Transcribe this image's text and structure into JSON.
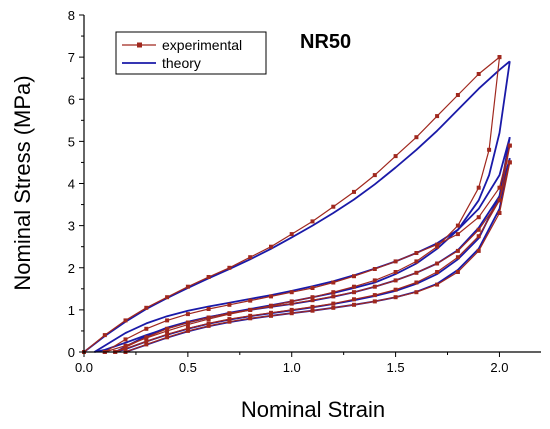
{
  "chart_data": {
    "type": "line",
    "title": "NR50",
    "xlabel": "Nominal Strain",
    "ylabel": "Nominal Stress (MPa)",
    "xlim": [
      0,
      2.2
    ],
    "ylim": [
      0,
      8
    ],
    "xticks": [
      0.0,
      0.5,
      1.0,
      1.5,
      2.0
    ],
    "xtick_labels": [
      "0.0",
      "0.5",
      "1.0",
      "1.5",
      "2.0"
    ],
    "yticks": [
      0,
      1,
      2,
      3,
      4,
      5,
      6,
      7,
      8
    ],
    "ytick_labels": [
      "0",
      "1",
      "2",
      "3",
      "4",
      "5",
      "6",
      "7",
      "8"
    ],
    "grid": false,
    "legend_position": "top-left",
    "legend": [
      {
        "label": "experimental",
        "color": "#a0281e",
        "marker": "square"
      },
      {
        "label": "theory",
        "color": "#1a1aa8",
        "marker": "none"
      }
    ],
    "series": [
      {
        "name": "experimental",
        "color": "#a0281e",
        "marker": "square",
        "curves": [
          {
            "x": [
              0,
              0.1,
              0.2,
              0.3,
              0.4,
              0.5,
              0.6,
              0.7,
              0.8,
              0.9,
              1.0,
              1.1,
              1.2,
              1.3,
              1.4,
              1.5,
              1.6,
              1.7,
              1.8,
              1.9,
              2.0
            ],
            "y": [
              0,
              0.4,
              0.75,
              1.05,
              1.3,
              1.55,
              1.78,
              2.0,
              2.25,
              2.5,
              2.8,
              3.1,
              3.45,
              3.8,
              4.2,
              4.65,
              5.1,
              5.6,
              6.1,
              6.6,
              7.0
            ]
          },
          {
            "x": [
              2.0,
              1.95,
              1.9,
              1.8,
              1.7,
              1.6,
              1.5,
              1.4,
              1.3,
              1.2,
              1.1,
              1.0,
              0.9,
              0.8,
              0.7,
              0.6,
              0.5,
              0.4,
              0.3,
              0.2,
              0.1
            ],
            "y": [
              7.0,
              4.8,
              3.9,
              3.0,
              2.5,
              2.15,
              1.9,
              1.7,
              1.55,
              1.42,
              1.3,
              1.2,
              1.1,
              1.0,
              0.9,
              0.78,
              0.65,
              0.5,
              0.33,
              0.15,
              0
            ]
          },
          {
            "x": [
              0.1,
              0.2,
              0.3,
              0.4,
              0.5,
              0.6,
              0.7,
              0.8,
              0.9,
              1.0,
              1.1,
              1.2,
              1.3,
              1.4,
              1.5,
              1.6,
              1.7,
              1.8,
              1.9,
              2.0,
              2.05
            ],
            "y": [
              0,
              0.3,
              0.55,
              0.75,
              0.9,
              1.02,
              1.12,
              1.22,
              1.32,
              1.42,
              1.52,
              1.65,
              1.8,
              1.97,
              2.15,
              2.35,
              2.55,
              2.8,
              3.2,
              3.9,
              4.9
            ]
          },
          {
            "x": [
              2.05,
              2.0,
              1.9,
              1.8,
              1.7,
              1.6,
              1.5,
              1.4,
              1.3,
              1.2,
              1.1,
              1.0,
              0.9,
              0.8,
              0.7,
              0.6,
              0.5,
              0.4,
              0.3,
              0.2,
              0.15
            ],
            "y": [
              4.9,
              3.6,
              2.75,
              2.25,
              1.9,
              1.65,
              1.48,
              1.35,
              1.25,
              1.15,
              1.07,
              1.0,
              0.93,
              0.86,
              0.78,
              0.68,
              0.56,
              0.42,
              0.25,
              0.08,
              0
            ]
          },
          {
            "x": [
              0.15,
              0.3,
              0.4,
              0.5,
              0.6,
              0.7,
              0.8,
              0.9,
              1.0,
              1.1,
              1.2,
              1.3,
              1.4,
              1.5,
              1.6,
              1.7,
              1.8,
              1.9,
              2.0,
              2.05
            ],
            "y": [
              0,
              0.35,
              0.55,
              0.7,
              0.82,
              0.92,
              1.0,
              1.08,
              1.15,
              1.23,
              1.32,
              1.42,
              1.55,
              1.7,
              1.88,
              2.1,
              2.4,
              2.9,
              3.6,
              4.5
            ]
          },
          {
            "x": [
              2.05,
              2.0,
              1.9,
              1.8,
              1.7,
              1.6,
              1.5,
              1.4,
              1.3,
              1.2,
              1.1,
              1.0,
              0.9,
              0.8,
              0.7,
              0.6,
              0.5,
              0.4,
              0.3,
              0.2
            ],
            "y": [
              4.5,
              3.3,
              2.4,
              1.9,
              1.6,
              1.42,
              1.3,
              1.2,
              1.12,
              1.05,
              0.98,
              0.92,
              0.86,
              0.8,
              0.72,
              0.62,
              0.5,
              0.35,
              0.18,
              0
            ]
          }
        ]
      },
      {
        "name": "theory",
        "color": "#1a1aa8",
        "marker": "none",
        "curves": [
          {
            "x": [
              0,
              0.1,
              0.2,
              0.3,
              0.4,
              0.5,
              0.6,
              0.7,
              0.8,
              0.9,
              1.0,
              1.1,
              1.2,
              1.3,
              1.4,
              1.5,
              1.6,
              1.7,
              1.8,
              1.9,
              2.0,
              2.05
            ],
            "y": [
              0,
              0.38,
              0.72,
              1.02,
              1.28,
              1.52,
              1.75,
              1.97,
              2.2,
              2.45,
              2.72,
              3.0,
              3.3,
              3.62,
              3.98,
              4.38,
              4.8,
              5.25,
              5.75,
              6.25,
              6.7,
              6.9
            ]
          },
          {
            "x": [
              2.05,
              2.0,
              1.95,
              1.9,
              1.8,
              1.7,
              1.6,
              1.5,
              1.4,
              1.3,
              1.2,
              1.1,
              1.0,
              0.9,
              0.8,
              0.7,
              0.6,
              0.5,
              0.4,
              0.3,
              0.2,
              0.1,
              0.05
            ],
            "y": [
              6.9,
              5.2,
              4.2,
              3.6,
              2.9,
              2.45,
              2.1,
              1.85,
              1.65,
              1.52,
              1.4,
              1.3,
              1.2,
              1.11,
              1.02,
              0.93,
              0.82,
              0.7,
              0.56,
              0.4,
              0.22,
              0.05,
              0
            ]
          },
          {
            "x": [
              0.05,
              0.2,
              0.3,
              0.4,
              0.5,
              0.6,
              0.7,
              0.8,
              0.9,
              1.0,
              1.1,
              1.2,
              1.3,
              1.4,
              1.5,
              1.6,
              1.7,
              1.8,
              1.9,
              2.0,
              2.05
            ],
            "y": [
              0,
              0.45,
              0.68,
              0.85,
              0.98,
              1.08,
              1.17,
              1.26,
              1.35,
              1.45,
              1.56,
              1.68,
              1.82,
              1.98,
              2.15,
              2.35,
              2.58,
              2.9,
              3.4,
              4.2,
              5.1
            ]
          },
          {
            "x": [
              2.05,
              2.0,
              1.9,
              1.8,
              1.7,
              1.6,
              1.5,
              1.4,
              1.3,
              1.2,
              1.1,
              1.0,
              0.9,
              0.8,
              0.7,
              0.6,
              0.5,
              0.4,
              0.3,
              0.2,
              0.15
            ],
            "y": [
              5.1,
              3.7,
              2.7,
              2.2,
              1.85,
              1.62,
              1.45,
              1.33,
              1.23,
              1.14,
              1.06,
              0.99,
              0.92,
              0.85,
              0.77,
              0.67,
              0.55,
              0.41,
              0.25,
              0.07,
              0
            ]
          },
          {
            "x": [
              0.15,
              0.3,
              0.4,
              0.5,
              0.6,
              0.7,
              0.8,
              0.9,
              1.0,
              1.1,
              1.2,
              1.3,
              1.4,
              1.5,
              1.6,
              1.7,
              1.8,
              1.9,
              2.0,
              2.05
            ],
            "y": [
              0,
              0.38,
              0.58,
              0.72,
              0.83,
              0.92,
              1.0,
              1.07,
              1.14,
              1.22,
              1.31,
              1.42,
              1.55,
              1.7,
              1.88,
              2.1,
              2.42,
              2.95,
              3.7,
              4.6
            ]
          },
          {
            "x": [
              2.05,
              2.0,
              1.9,
              1.8,
              1.7,
              1.6,
              1.5,
              1.4,
              1.3,
              1.2,
              1.1,
              1.0,
              0.9,
              0.8,
              0.7,
              0.6,
              0.5,
              0.4,
              0.3,
              0.2
            ],
            "y": [
              4.6,
              3.4,
              2.45,
              1.95,
              1.62,
              1.43,
              1.3,
              1.2,
              1.12,
              1.05,
              0.98,
              0.92,
              0.86,
              0.79,
              0.71,
              0.61,
              0.49,
              0.34,
              0.17,
              0
            ]
          }
        ]
      }
    ]
  }
}
